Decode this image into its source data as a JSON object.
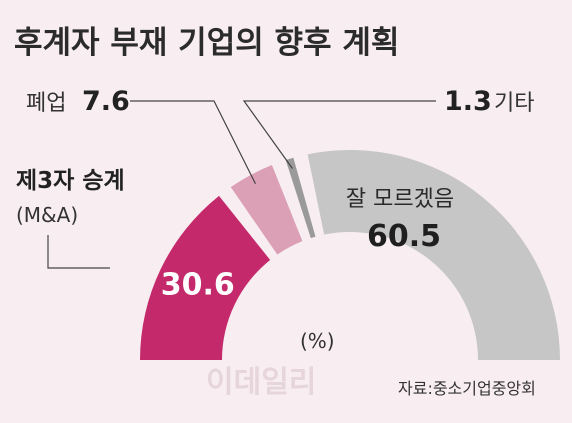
{
  "title": "후계자 부재 기업의 향후 계획",
  "unit_label": "(%)",
  "source": "자료:중소기업중앙회",
  "watermark": "이데일리",
  "colors": {
    "background": "#f8eef1",
    "succession": "#c42a6b",
    "closure": "#dba0b6",
    "other": "#9a9a9a",
    "unknown": "#c6c6c6"
  },
  "chart_data": {
    "type": "pie",
    "subtype": "half-donut",
    "title": "후계자 부재 기업의 향후 계획",
    "unit": "%",
    "slices": [
      {
        "label": "제3자 승계",
        "sublabel": "(M&A)",
        "value": 30.6,
        "color": "#c42a6b"
      },
      {
        "label": "폐업",
        "value": 7.6,
        "color": "#dba0b6"
      },
      {
        "label": "기타",
        "value": 1.3,
        "color": "#9a9a9a"
      },
      {
        "label": "잘 모르겠음",
        "value": 60.5,
        "color": "#c6c6c6"
      }
    ]
  }
}
